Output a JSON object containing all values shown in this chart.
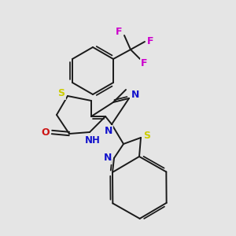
{
  "background_color": "#e5e5e5",
  "bond_color": "#1a1a1a",
  "colors": {
    "N": "#1414cc",
    "O": "#cc1414",
    "S": "#cccc00",
    "F": "#cc00cc",
    "C": "#1a1a1a"
  },
  "figsize": [
    3.0,
    3.0
  ],
  "dpi": 100,
  "lw": 1.4
}
